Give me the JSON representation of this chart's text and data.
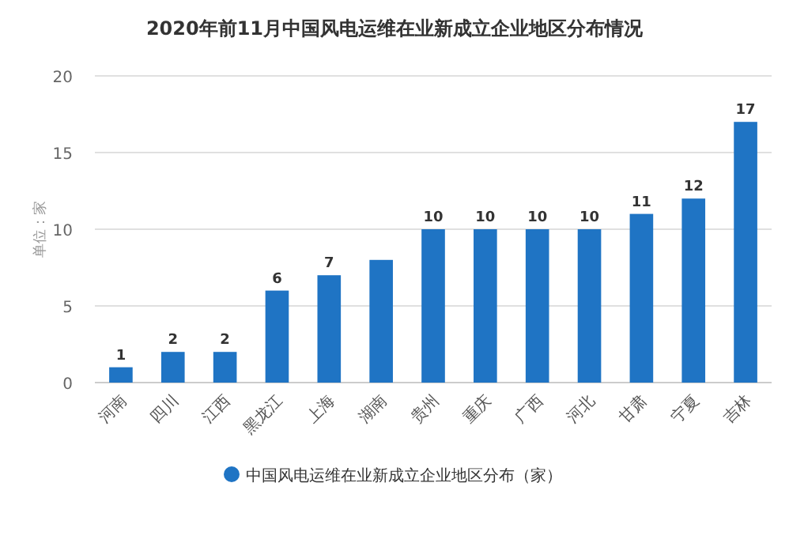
{
  "chart_data": {
    "type": "bar",
    "title": "2020年前11月中国风电运维在业新成立企业地区分布情况",
    "ylabel": "单位：家",
    "categories": [
      "河南",
      "四川",
      "江西",
      "黑龙江",
      "上海",
      "湖南",
      "贵州",
      "重庆",
      "广西",
      "河北",
      "甘肃",
      "宁夏",
      "吉林"
    ],
    "series": [
      {
        "name": "中国风电运维在业新成立企业地区分布（家）",
        "color": "#1f74c4",
        "values": [
          1,
          2,
          2,
          6,
          7,
          8,
          10,
          10,
          10,
          10,
          11,
          12,
          17
        ],
        "value_labels": [
          "1",
          "2",
          "2",
          "6",
          "7",
          null,
          "10",
          "10",
          "10",
          "10",
          "11",
          "12",
          "17"
        ]
      }
    ],
    "ylim": [
      0,
      20
    ],
    "yticks": [
      0,
      5,
      10,
      15,
      20
    ],
    "grid": "y",
    "legend": "bottom"
  }
}
